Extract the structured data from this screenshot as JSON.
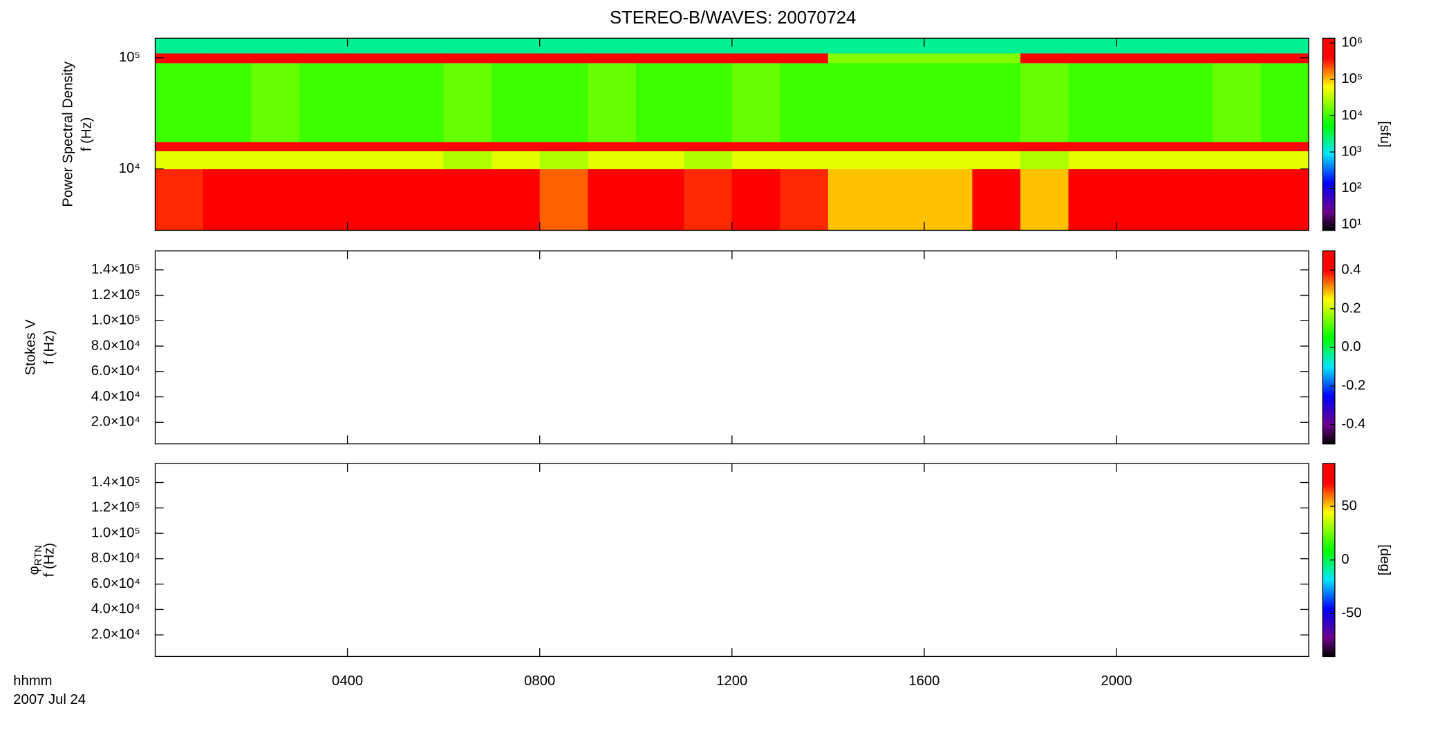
{
  "chart_data": [
    {
      "type": "heatmap",
      "title": "STEREO-B/WAVES: 20070724",
      "ylabel": [
        "Power Spectral Density",
        "f (Hz)"
      ],
      "log_y": true,
      "log_z": true,
      "colormap": "rainbow",
      "xlim": [
        0,
        24
      ],
      "xticks": [
        4,
        8,
        12,
        16,
        20
      ],
      "ylim": [
        2800,
        150000
      ],
      "yticks": [
        {
          "value": 10000,
          "label": "10⁴"
        },
        {
          "value": 100000,
          "label": "10⁵"
        }
      ],
      "xbins": [
        0,
        1,
        2,
        3,
        4,
        5,
        6,
        7,
        8,
        9,
        10,
        11,
        12,
        13,
        14,
        15,
        16,
        17,
        18,
        19,
        20,
        21,
        22,
        23,
        24
      ],
      "ybins": [
        2800,
        10000,
        14500,
        17500,
        90000,
        110000,
        150000
      ],
      "z": [
        [
          300000,
          1000000,
          1000000,
          1000000,
          1000000,
          500000,
          500000,
          1000000,
          200000,
          1000000,
          500000,
          300000,
          500000,
          300000,
          100000,
          100000,
          100000,
          1000000,
          100000,
          500000,
          500000,
          500000,
          500000,
          500000
        ],
        [
          50000,
          50000,
          50000,
          50000,
          50000,
          50000,
          30000,
          50000,
          30000,
          50000,
          50000,
          30000,
          50000,
          50000,
          50000,
          50000,
          50000,
          50000,
          30000,
          50000,
          50000,
          50000,
          50000,
          50000
        ],
        [
          1000000,
          1000000,
          1000000,
          1000000,
          1000000,
          1000000,
          1000000,
          1000000,
          1000000,
          1000000,
          1000000,
          1000000,
          1000000,
          1000000,
          1000000,
          1000000,
          1000000,
          1000000,
          1000000,
          1000000,
          1000000,
          1000000,
          1000000,
          1000000
        ],
        [
          10000,
          10000,
          15000,
          10000,
          10000,
          10000,
          15000,
          10000,
          10000,
          15000,
          10000,
          10000,
          15000,
          10000,
          10000,
          10000,
          10000,
          10000,
          15000,
          10000,
          10000,
          10000,
          15000,
          10000
        ],
        [
          1000000,
          1000000,
          1000000,
          1000000,
          1000000,
          1000000,
          1000000,
          1000000,
          1000000,
          1000000,
          1000000,
          1000000,
          1000000,
          500000,
          20000,
          20000,
          20000,
          20000,
          1000000,
          1000000,
          1000000,
          1000000,
          1000000,
          1000000
        ],
        [
          2000,
          2000,
          2000,
          2000,
          2000,
          2000,
          2000,
          2000,
          2000,
          2000,
          2000,
          2000,
          2000,
          2000,
          2000,
          2000,
          2000,
          2000,
          2000,
          2000,
          2000,
          2000,
          2000,
          2000
        ]
      ],
      "zlim": [
        7,
        1350000
      ],
      "zlabel": "[sfu]",
      "zticks": [
        {
          "value": 10,
          "label": "10¹"
        },
        {
          "value": 100,
          "label": "10²"
        },
        {
          "value": 1000,
          "label": "10³"
        },
        {
          "value": 10000,
          "label": "10⁴"
        },
        {
          "value": 100000,
          "label": "10⁵"
        },
        {
          "value": 1000000,
          "label": "10⁶"
        }
      ]
    },
    {
      "type": "heatmap",
      "ylabel": [
        "Stokes V",
        "f (Hz)"
      ],
      "colormap": "rainbow",
      "xlim": [
        0,
        24
      ],
      "xticks": [
        4,
        8,
        12,
        16,
        20
      ],
      "ylim": [
        3000,
        155000
      ],
      "yticks": [
        {
          "value": 20000,
          "label": "2.0×10⁴"
        },
        {
          "value": 40000,
          "label": "4.0×10⁴"
        },
        {
          "value": 60000,
          "label": "6.0×10⁴"
        },
        {
          "value": 80000,
          "label": "8.0×10⁴"
        },
        {
          "value": 100000,
          "label": "1.0×10⁵"
        },
        {
          "value": 120000,
          "label": "1.2×10⁵"
        },
        {
          "value": 140000,
          "label": "1.4×10⁵"
        }
      ],
      "zlim": [
        -0.5,
        0.5
      ],
      "zticks": [
        -0.4,
        -0.2,
        {
          "value": 0,
          "label": "0.0"
        },
        0.2,
        0.4
      ]
    },
    {
      "type": "heatmap",
      "ylabel": [
        "f (Hz)"
      ],
      "ylabel_symbol": "φ",
      "ylabel_subscript": "RTN",
      "colormap": "rainbow",
      "xlim": [
        0,
        24
      ],
      "xticks": [
        {
          "value": 4,
          "label": "0400"
        },
        {
          "value": 8,
          "label": "0800"
        },
        {
          "value": 12,
          "label": "1200"
        },
        {
          "value": 16,
          "label": "1600"
        },
        {
          "value": 20,
          "label": "2000"
        }
      ],
      "xlabel": "hhmm",
      "xlabel2": "2007 Jul 24",
      "ylim": [
        3000,
        155000
      ],
      "yticks": [
        {
          "value": 20000,
          "label": "2.0×10⁴"
        },
        {
          "value": 40000,
          "label": "4.0×10⁴"
        },
        {
          "value": 60000,
          "label": "6.0×10⁴"
        },
        {
          "value": 80000,
          "label": "8.0×10⁴"
        },
        {
          "value": 100000,
          "label": "1.0×10⁵"
        },
        {
          "value": 120000,
          "label": "1.2×10⁵"
        },
        {
          "value": 140000,
          "label": "1.4×10⁵"
        }
      ],
      "zlim": [
        -90,
        90
      ],
      "zlabel": "[deg]",
      "zticks": [
        -50,
        0,
        50
      ]
    }
  ]
}
